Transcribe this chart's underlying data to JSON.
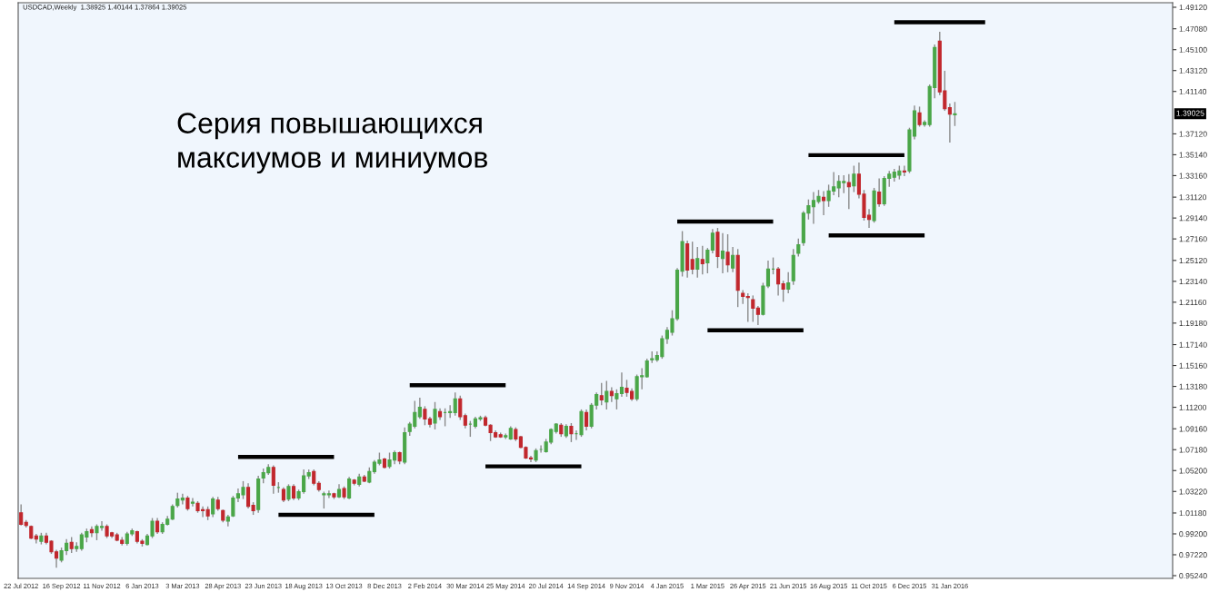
{
  "chart_data": {
    "type": "candlestick",
    "title": "USDCAD,Weekly  1.38925 1.40144 1.37864 1.39025",
    "annotations": [
      "Серия повышающихся\nмаксиумов и миниумов",
      "1.39025"
    ],
    "colors": [
      "#c1272d",
      "#c1272d",
      "#c1272d",
      "#c1272d",
      "#4aa648",
      "#c1272d",
      "#c1272d",
      "#c1272d",
      "#4aa648",
      "#4aa648",
      "#c1272d",
      "#4aa648",
      "#4aa648",
      "#4aa648",
      "#c1272d",
      "#4aa648",
      "#4aa648",
      "#c1272d",
      "#c1272d",
      "#c1272d",
      "#c1272d",
      "#4aa648",
      "#4aa648",
      "#c1272d",
      "#c1272d",
      "#4aa648",
      "#4aa648",
      "#c1272d",
      "#4aa648",
      "#4aa648",
      "#4aa648",
      "#4aa648",
      "#4aa648",
      "#c1272d",
      "#4aa648",
      "#c1272d",
      "#c1272d",
      "#c1272d",
      "#4aa648",
      "#c1272d",
      "#c1272d",
      "#4aa648",
      "#4aa648",
      "#4aa648",
      "#4aa648",
      "#c1272d",
      "#c1272d",
      "#4aa648",
      "#4aa648",
      "#4aa648",
      "#c1272d",
      "#4aa648",
      "#c1272d",
      "#4aa648",
      "#c1272d",
      "#4aa648",
      "#4aa648",
      "#4aa648",
      "#c1272d",
      "#c1272d",
      "#4aa648",
      "#4aa648",
      "#c1272d",
      "#4aa648",
      "#c1272d",
      "#4aa648",
      "#c1272d",
      "#4aa648",
      "#c1272d",
      "#4aa648",
      "#4aa648",
      "#4aa648",
      "#c1272d",
      "#4aa648",
      "#4aa648",
      "#c1272d",
      "#4aa648",
      "#4aa648",
      "#4aa648",
      "#4aa648",
      "#c1272d",
      "#c1272d",
      "#4aa648",
      "#c1272d",
      "#4aa648",
      "#4aa648",
      "#4aa648",
      "#c1272d",
      "#c1272d",
      "#4aa648",
      "#4aa648",
      "#4aa648",
      "#c1272d",
      "#c1272d",
      "#c1272d",
      "#c1272d",
      "#4aa648",
      "#4aa648",
      "#c1272d",
      "#c1272d",
      "#c1272d",
      "#c1272d",
      "#4aa648",
      "#4aa648",
      "#4aa648",
      "#4aa648",
      "#4aa648",
      "#c1272d",
      "#4aa648",
      "#c1272d",
      "#4aa648",
      "#4aa648",
      "#c1272d",
      "#4aa648",
      "#4aa648",
      "#c1272d",
      "#4aa648",
      "#c1272d",
      "#4aa648",
      "#4aa648",
      "#c1272d",
      "#c1272d",
      "#4aa648",
      "#4aa648",
      "#4aa648",
      "#4aa648",
      "#4aa648",
      "#4aa648",
      "#4aa648",
      "#4aa648",
      "#4aa648",
      "#4aa648",
      "#c1272d",
      "#c1272d",
      "#4aa648",
      "#c1272d",
      "#4aa648",
      "#4aa648",
      "#c1272d",
      "#4aa648",
      "#c1272d",
      "#4aa648",
      "#c1272d",
      "#c1272d",
      "#c1272d",
      "#c1272d",
      "#c1272d",
      "#4aa648",
      "#4aa648",
      "#4aa648",
      "#c1272d",
      "#c1272d",
      "#4aa648",
      "#4aa648",
      "#4aa648",
      "#4aa648",
      "#4aa648",
      "#4aa648",
      "#4aa648",
      "#c1272d",
      "#4aa648",
      "#4aa648",
      "#4aa648",
      "#4aa648",
      "#c1272d",
      "#4aa648",
      "#c1272d",
      "#c1272d",
      "#c1272d",
      "#4aa648",
      "#c1272d",
      "#4aa648",
      "#4aa648",
      "#4aa648",
      "#4aa648",
      "#c1272d",
      "#4aa648",
      "#4aa648",
      "#c1272d",
      "#4aa648",
      "#4aa648",
      "#4aa648",
      "#c1272d",
      "#c1272d",
      "#c1272d",
      "#4aa648"
    ],
    "x": [
      "2012-07-22",
      "2012-07-29",
      "2012-08-05",
      "2012-08-12",
      "2012-08-19",
      "2012-08-26",
      "2012-09-02",
      "2012-09-09",
      "2012-09-16",
      "2012-09-23",
      "2012-09-30",
      "2012-10-07",
      "2012-10-14",
      "2012-10-21",
      "2012-10-28",
      "2012-11-04",
      "2012-11-11",
      "2012-11-18",
      "2012-11-25",
      "2012-12-02",
      "2012-12-09",
      "2012-12-16",
      "2012-12-23",
      "2012-12-30",
      "2013-01-06",
      "2013-01-13",
      "2013-01-20",
      "2013-01-27",
      "2013-02-03",
      "2013-02-10",
      "2013-02-17",
      "2013-02-24",
      "2013-03-03",
      "2013-03-10",
      "2013-03-17",
      "2013-03-24",
      "2013-03-31",
      "2013-04-07",
      "2013-04-14",
      "2013-04-21",
      "2013-04-28",
      "2013-05-05",
      "2013-05-12",
      "2013-05-19",
      "2013-05-26",
      "2013-06-02",
      "2013-06-09",
      "2013-06-16",
      "2013-06-23",
      "2013-06-30",
      "2013-07-07",
      "2013-07-14",
      "2013-07-21",
      "2013-07-28",
      "2013-08-04",
      "2013-08-11",
      "2013-08-18",
      "2013-08-25",
      "2013-09-01",
      "2013-09-08",
      "2013-09-15",
      "2013-09-22",
      "2013-09-29",
      "2013-10-06",
      "2013-10-13",
      "2013-10-20",
      "2013-10-27",
      "2013-11-03",
      "2013-11-10",
      "2013-11-17",
      "2013-11-24",
      "2013-12-01",
      "2013-12-08",
      "2013-12-15",
      "2013-12-22",
      "2013-12-29",
      "2014-01-05",
      "2014-01-12",
      "2014-01-19",
      "2014-01-26",
      "2014-02-02",
      "2014-02-09",
      "2014-02-16",
      "2014-02-23",
      "2014-03-02",
      "2014-03-09",
      "2014-03-16",
      "2014-03-23",
      "2014-03-30",
      "2014-04-06",
      "2014-04-13",
      "2014-04-20",
      "2014-04-27",
      "2014-05-04",
      "2014-05-11",
      "2014-05-18",
      "2014-05-25",
      "2014-06-01",
      "2014-06-08",
      "2014-06-15",
      "2014-06-22",
      "2014-06-29",
      "2014-07-06",
      "2014-07-13",
      "2014-07-20",
      "2014-07-27",
      "2014-08-03",
      "2014-08-10",
      "2014-08-17",
      "2014-08-24",
      "2014-08-31",
      "2014-09-07",
      "2014-09-14",
      "2014-09-21",
      "2014-09-28",
      "2014-10-05",
      "2014-10-12",
      "2014-10-19",
      "2014-10-26",
      "2014-11-02",
      "2014-11-09",
      "2014-11-16",
      "2014-11-23",
      "2014-11-30",
      "2014-12-07",
      "2014-12-14",
      "2014-12-21",
      "2014-12-28",
      "2015-01-04",
      "2015-01-11",
      "2015-01-18",
      "2015-01-25",
      "2015-02-01",
      "2015-02-08",
      "2015-02-15",
      "2015-02-22",
      "2015-03-01",
      "2015-03-08",
      "2015-03-15",
      "2015-03-22",
      "2015-03-29",
      "2015-04-05",
      "2015-04-12",
      "2015-04-19",
      "2015-04-26",
      "2015-05-03",
      "2015-05-10",
      "2015-05-17",
      "2015-05-24",
      "2015-05-31",
      "2015-06-07",
      "2015-06-14",
      "2015-06-21",
      "2015-06-28",
      "2015-07-05",
      "2015-07-12",
      "2015-07-19",
      "2015-07-26",
      "2015-08-02",
      "2015-08-09",
      "2015-08-16",
      "2015-08-23",
      "2015-08-30",
      "2015-09-06",
      "2015-09-13",
      "2015-09-20",
      "2015-09-27",
      "2015-10-04",
      "2015-10-11",
      "2015-10-18",
      "2015-10-25",
      "2015-11-01",
      "2015-11-08",
      "2015-11-15",
      "2015-11-22",
      "2015-11-29",
      "2015-12-06",
      "2015-12-13",
      "2015-12-20",
      "2015-12-27",
      "2016-01-03",
      "2016-01-10",
      "2016-01-17",
      "2016-01-24",
      "2016-01-31",
      "2016-02-07"
    ],
    "ohlc": [
      [
        1.012,
        1.02,
        1.0,
        1.001
      ],
      [
        1.003,
        1.005,
        0.998,
        1.0
      ],
      [
        0.999,
        1.0,
        0.987,
        0.988
      ],
      [
        0.99,
        0.992,
        0.983,
        0.987
      ],
      [
        0.985,
        0.993,
        0.982,
        0.99
      ],
      [
        0.99,
        0.993,
        0.982,
        0.984
      ],
      [
        0.985,
        0.986,
        0.973,
        0.975
      ],
      [
        0.975,
        0.977,
        0.96,
        0.969
      ],
      [
        0.967,
        0.979,
        0.965,
        0.976
      ],
      [
        0.976,
        0.987,
        0.972,
        0.983
      ],
      [
        0.984,
        0.989,
        0.974,
        0.978
      ],
      [
        0.978,
        0.984,
        0.975,
        0.98
      ],
      [
        0.978,
        0.993,
        0.976,
        0.991
      ],
      [
        0.989,
        0.997,
        0.984,
        0.994
      ],
      [
        0.996,
        0.999,
        0.989,
        0.993
      ],
      [
        0.993,
        1.001,
        0.986,
        0.999
      ],
      [
        0.998,
        1.004,
        0.995,
        0.999
      ],
      [
        0.999,
        1.001,
        0.988,
        0.99
      ],
      [
        0.993,
        0.994,
        0.988,
        0.99
      ],
      [
        0.991,
        0.993,
        0.985,
        0.986
      ],
      [
        0.986,
        0.989,
        0.981,
        0.983
      ],
      [
        0.983,
        0.994,
        0.981,
        0.992
      ],
      [
        0.992,
        0.997,
        0.99,
        0.995
      ],
      [
        0.994,
        0.995,
        0.983,
        0.985
      ],
      [
        0.985,
        0.987,
        0.98,
        0.983
      ],
      [
        0.982,
        0.992,
        0.981,
        0.99
      ],
      [
        0.99,
        1.007,
        0.988,
        1.004
      ],
      [
        1.004,
        1.007,
        0.992,
        0.994
      ],
      [
        0.994,
        1.003,
        0.992,
        1.001
      ],
      [
        1.001,
        1.009,
        1.0,
        1.006
      ],
      [
        1.006,
        1.02,
        1.005,
        1.018
      ],
      [
        1.019,
        1.031,
        1.017,
        1.025
      ],
      [
        1.024,
        1.03,
        1.02,
        1.026
      ],
      [
        1.026,
        1.028,
        1.014,
        1.016
      ],
      [
        1.021,
        1.026,
        1.018,
        1.022
      ],
      [
        1.021,
        1.023,
        1.012,
        1.014
      ],
      [
        1.015,
        1.018,
        1.008,
        1.014
      ],
      [
        1.015,
        1.018,
        1.005,
        1.009
      ],
      [
        1.011,
        1.027,
        1.008,
        1.025
      ],
      [
        1.024,
        1.027,
        1.014,
        1.016
      ],
      [
        1.014,
        1.015,
        1.003,
        1.005
      ],
      [
        1.004,
        1.01,
        0.999,
        1.008
      ],
      [
        1.009,
        1.028,
        1.008,
        1.026
      ],
      [
        1.026,
        1.035,
        1.022,
        1.03
      ],
      [
        1.029,
        1.042,
        1.025,
        1.036
      ],
      [
        1.036,
        1.04,
        1.016,
        1.018
      ],
      [
        1.019,
        1.022,
        1.01,
        1.014
      ],
      [
        1.015,
        1.047,
        1.012,
        1.044
      ],
      [
        1.045,
        1.054,
        1.04,
        1.05
      ],
      [
        1.05,
        1.058,
        1.048,
        1.055
      ],
      [
        1.055,
        1.057,
        1.03,
        1.038
      ],
      [
        1.036,
        1.041,
        1.031,
        1.036
      ],
      [
        1.034,
        1.036,
        1.022,
        1.024
      ],
      [
        1.025,
        1.039,
        1.023,
        1.037
      ],
      [
        1.037,
        1.039,
        1.024,
        1.026
      ],
      [
        1.026,
        1.034,
        1.024,
        1.032
      ],
      [
        1.032,
        1.053,
        1.03,
        1.047
      ],
      [
        1.047,
        1.053,
        1.044,
        1.05
      ],
      [
        1.051,
        1.053,
        1.038,
        1.04
      ],
      [
        1.04,
        1.042,
        1.032,
        1.034
      ],
      [
        1.029,
        1.032,
        1.016,
        1.03
      ],
      [
        1.029,
        1.033,
        1.026,
        1.03
      ],
      [
        1.03,
        1.031,
        1.025,
        1.027
      ],
      [
        1.027,
        1.039,
        1.026,
        1.034
      ],
      [
        1.035,
        1.037,
        1.025,
        1.027
      ],
      [
        1.026,
        1.046,
        1.025,
        1.044
      ],
      [
        1.043,
        1.044,
        1.038,
        1.04
      ],
      [
        1.039,
        1.049,
        1.037,
        1.046
      ],
      [
        1.046,
        1.048,
        1.041,
        1.042
      ],
      [
        1.041,
        1.055,
        1.04,
        1.051
      ],
      [
        1.051,
        1.062,
        1.049,
        1.06
      ],
      [
        1.059,
        1.069,
        1.057,
        1.062
      ],
      [
        1.063,
        1.064,
        1.054,
        1.055
      ],
      [
        1.056,
        1.069,
        1.054,
        1.062
      ],
      [
        1.062,
        1.071,
        1.058,
        1.069
      ],
      [
        1.069,
        1.07,
        1.058,
        1.061
      ],
      [
        1.06,
        1.093,
        1.058,
        1.088
      ],
      [
        1.089,
        1.098,
        1.085,
        1.096
      ],
      [
        1.094,
        1.118,
        1.092,
        1.107
      ],
      [
        1.103,
        1.121,
        1.101,
        1.112
      ],
      [
        1.11,
        1.113,
        1.095,
        1.101
      ],
      [
        1.101,
        1.103,
        1.093,
        1.096
      ],
      [
        1.097,
        1.117,
        1.091,
        1.11
      ],
      [
        1.108,
        1.111,
        1.1,
        1.103
      ],
      [
        1.107,
        1.111,
        1.094,
        1.107
      ],
      [
        1.107,
        1.114,
        1.102,
        1.108
      ],
      [
        1.107,
        1.126,
        1.104,
        1.12
      ],
      [
        1.12,
        1.123,
        1.1,
        1.103
      ],
      [
        1.104,
        1.106,
        1.092,
        1.095
      ],
      [
        1.096,
        1.099,
        1.084,
        1.096
      ],
      [
        1.094,
        1.103,
        1.092,
        1.101
      ],
      [
        1.101,
        1.104,
        1.099,
        1.102
      ],
      [
        1.102,
        1.104,
        1.094,
        1.095
      ],
      [
        1.095,
        1.096,
        1.08,
        1.088
      ],
      [
        1.088,
        1.09,
        1.083,
        1.084
      ],
      [
        1.086,
        1.088,
        1.083,
        1.084
      ],
      [
        1.084,
        1.087,
        1.082,
        1.085
      ],
      [
        1.082,
        1.094,
        1.081,
        1.092
      ],
      [
        1.091,
        1.093,
        1.08,
        1.082
      ],
      [
        1.084,
        1.085,
        1.073,
        1.074
      ],
      [
        1.074,
        1.075,
        1.063,
        1.064
      ],
      [
        1.064,
        1.066,
        1.06,
        1.063
      ],
      [
        1.062,
        1.073,
        1.06,
        1.071
      ],
      [
        1.072,
        1.076,
        1.069,
        1.072
      ],
      [
        1.07,
        1.082,
        1.069,
        1.079
      ],
      [
        1.079,
        1.092,
        1.077,
        1.091
      ],
      [
        1.089,
        1.097,
        1.087,
        1.096
      ],
      [
        1.095,
        1.097,
        1.084,
        1.087
      ],
      [
        1.085,
        1.096,
        1.083,
        1.094
      ],
      [
        1.094,
        1.097,
        1.079,
        1.087
      ],
      [
        1.087,
        1.09,
        1.081,
        1.087
      ],
      [
        1.086,
        1.11,
        1.084,
        1.108
      ],
      [
        1.107,
        1.11,
        1.09,
        1.094
      ],
      [
        1.094,
        1.116,
        1.092,
        1.114
      ],
      [
        1.114,
        1.126,
        1.11,
        1.124
      ],
      [
        1.123,
        1.135,
        1.114,
        1.119
      ],
      [
        1.117,
        1.137,
        1.11,
        1.127
      ],
      [
        1.127,
        1.131,
        1.117,
        1.123
      ],
      [
        1.12,
        1.129,
        1.11,
        1.125
      ],
      [
        1.125,
        1.145,
        1.122,
        1.131
      ],
      [
        1.13,
        1.138,
        1.122,
        1.126
      ],
      [
        1.127,
        1.13,
        1.118,
        1.12
      ],
      [
        1.12,
        1.143,
        1.118,
        1.141
      ],
      [
        1.141,
        1.149,
        1.129,
        1.142
      ],
      [
        1.141,
        1.158,
        1.14,
        1.156
      ],
      [
        1.157,
        1.165,
        1.154,
        1.158
      ],
      [
        1.157,
        1.165,
        1.155,
        1.161
      ],
      [
        1.16,
        1.18,
        1.158,
        1.177
      ],
      [
        1.177,
        1.188,
        1.172,
        1.185
      ],
      [
        1.183,
        1.204,
        1.18,
        1.196
      ],
      [
        1.196,
        1.244,
        1.194,
        1.242
      ],
      [
        1.241,
        1.279,
        1.236,
        1.269
      ],
      [
        1.267,
        1.27,
        1.235,
        1.242
      ],
      [
        1.252,
        1.269,
        1.238,
        1.243
      ],
      [
        1.243,
        1.264,
        1.235,
        1.253
      ],
      [
        1.252,
        1.265,
        1.238,
        1.248
      ],
      [
        1.249,
        1.263,
        1.239,
        1.261
      ],
      [
        1.261,
        1.281,
        1.258,
        1.277
      ],
      [
        1.278,
        1.282,
        1.244,
        1.255
      ],
      [
        1.253,
        1.277,
        1.239,
        1.26
      ],
      [
        1.259,
        1.276,
        1.24,
        1.247
      ],
      [
        1.244,
        1.264,
        1.24,
        1.256
      ],
      [
        1.256,
        1.262,
        1.207,
        1.223
      ],
      [
        1.22,
        1.223,
        1.21,
        1.217
      ],
      [
        1.217,
        1.22,
        1.193,
        1.216
      ],
      [
        1.214,
        1.218,
        1.193,
        1.206
      ],
      [
        1.206,
        1.208,
        1.19,
        1.2
      ],
      [
        1.2,
        1.23,
        1.199,
        1.227
      ],
      [
        1.227,
        1.251,
        1.225,
        1.243
      ],
      [
        1.243,
        1.254,
        1.238,
        1.243
      ],
      [
        1.243,
        1.245,
        1.218,
        1.229
      ],
      [
        1.229,
        1.232,
        1.212,
        1.224
      ],
      [
        1.224,
        1.24,
        1.22,
        1.23
      ],
      [
        1.232,
        1.262,
        1.228,
        1.256
      ],
      [
        1.258,
        1.272,
        1.255,
        1.266
      ],
      [
        1.268,
        1.298,
        1.265,
        1.296
      ],
      [
        1.296,
        1.309,
        1.29,
        1.303
      ],
      [
        1.302,
        1.316,
        1.286,
        1.308
      ],
      [
        1.307,
        1.318,
        1.305,
        1.312
      ],
      [
        1.311,
        1.317,
        1.294,
        1.308
      ],
      [
        1.308,
        1.323,
        1.302,
        1.317
      ],
      [
        1.317,
        1.335,
        1.313,
        1.321
      ],
      [
        1.32,
        1.332,
        1.311,
        1.326
      ],
      [
        1.325,
        1.332,
        1.315,
        1.326
      ],
      [
        1.325,
        1.333,
        1.3,
        1.321
      ],
      [
        1.322,
        1.341,
        1.316,
        1.333
      ],
      [
        1.333,
        1.344,
        1.31,
        1.314
      ],
      [
        1.314,
        1.318,
        1.289,
        1.292
      ],
      [
        1.294,
        1.3,
        1.282,
        1.29
      ],
      [
        1.289,
        1.32,
        1.287,
        1.317
      ],
      [
        1.316,
        1.329,
        1.302,
        1.305
      ],
      [
        1.305,
        1.331,
        1.303,
        1.329
      ],
      [
        1.329,
        1.336,
        1.321,
        1.333
      ],
      [
        1.33,
        1.338,
        1.326,
        1.335
      ],
      [
        1.332,
        1.341,
        1.328,
        1.336
      ],
      [
        1.336,
        1.341,
        1.331,
        1.335
      ],
      [
        1.336,
        1.377,
        1.334,
        1.375
      ],
      [
        1.369,
        1.398,
        1.366,
        1.393
      ],
      [
        1.391,
        1.397,
        1.378,
        1.38
      ],
      [
        1.38,
        1.384,
        1.378,
        1.382
      ],
      [
        1.38,
        1.418,
        1.378,
        1.416
      ],
      [
        1.415,
        1.456,
        1.405,
        1.453
      ],
      [
        1.459,
        1.468,
        1.408,
        1.411
      ],
      [
        1.412,
        1.431,
        1.393,
        1.395
      ],
      [
        1.396,
        1.4,
        1.363,
        1.39
      ],
      [
        1.38925,
        1.40144,
        1.37864,
        1.39025
      ]
    ],
    "series": [
      {
        "type": "line",
        "color": "#000000",
        "x": [
          "2013-05-19",
          "2013-09-29"
        ],
        "values": [
          1.065,
          1.065
        ]
      },
      {
        "type": "line",
        "color": "#000000",
        "x": [
          "2013-07-14",
          "2013-11-24"
        ],
        "values": [
          1.01,
          1.01
        ]
      },
      {
        "type": "line",
        "color": "#000000",
        "x": [
          "2014-01-12",
          "2014-05-25"
        ],
        "values": [
          1.133,
          1.133
        ]
      },
      {
        "type": "line",
        "color": "#000000",
        "x": [
          "2014-04-27",
          "2014-09-07"
        ],
        "values": [
          1.056,
          1.056
        ]
      },
      {
        "type": "line",
        "color": "#000000",
        "x": [
          "2015-01-18",
          "2015-05-31"
        ],
        "values": [
          1.288,
          1.288
        ]
      },
      {
        "type": "line",
        "color": "#000000",
        "x": [
          "2015-03-01",
          "2015-07-12"
        ],
        "values": [
          1.185,
          1.185
        ]
      },
      {
        "type": "line",
        "color": "#000000",
        "x": [
          "2015-07-19",
          "2015-11-29"
        ],
        "values": [
          1.351,
          1.351
        ]
      },
      {
        "type": "line",
        "color": "#000000",
        "x": [
          "2015-08-16",
          "2015-12-27"
        ],
        "values": [
          1.275,
          1.275
        ]
      },
      {
        "type": "line",
        "color": "#000000",
        "x": [
          "2015-11-15",
          "2016-03-20"
        ],
        "values": [
          1.477,
          1.477
        ]
      }
    ],
    "xlim": [
      "2012-07-18",
      "2016-12-05"
    ],
    "xticks": [
      {
        "value": "2012-07-22",
        "label": "22 Jul 2012"
      },
      {
        "value": "2012-09-16",
        "label": "16 Sep 2012"
      },
      {
        "value": "2012-11-11",
        "label": "11 Nov 2012"
      },
      {
        "value": "2013-01-06",
        "label": "6 Jan 2013"
      },
      {
        "value": "2013-03-03",
        "label": "3 Mar 2013"
      },
      {
        "value": "2013-04-28",
        "label": "28 Apr 2013"
      },
      {
        "value": "2013-06-23",
        "label": "23 Jun 2013"
      },
      {
        "value": "2013-08-18",
        "label": "18 Aug 2013"
      },
      {
        "value": "2013-10-13",
        "label": "13 Oct 2013"
      },
      {
        "value": "2013-12-08",
        "label": "8 Dec 2013"
      },
      {
        "value": "2014-02-02",
        "label": "2 Feb 2014"
      },
      {
        "value": "2014-03-30",
        "label": "30 Mar 2014"
      },
      {
        "value": "2014-05-25",
        "label": "25 May 2014"
      },
      {
        "value": "2014-07-20",
        "label": "20 Jul 2014"
      },
      {
        "value": "2014-09-14",
        "label": "14 Sep 2014"
      },
      {
        "value": "2014-11-09",
        "label": "9 Nov 2014"
      },
      {
        "value": "2015-01-04",
        "label": "4 Jan 2015"
      },
      {
        "value": "2015-03-01",
        "label": "1 Mar 2015"
      },
      {
        "value": "2015-04-26",
        "label": "26 Apr 2015"
      },
      {
        "value": "2015-06-21",
        "label": "21 Jun 2015"
      },
      {
        "value": "2015-08-16",
        "label": "16 Aug 2015"
      },
      {
        "value": "2015-10-11",
        "label": "11 Oct 2015"
      },
      {
        "value": "2015-12-06",
        "label": "6 Dec 2015"
      },
      {
        "value": "2016-01-31",
        "label": "31 Jan 2016"
      }
    ],
    "ylim": [
      0.9498,
      1.4955
    ],
    "yticks": [
      {
        "value": 1.4912,
        "label": "1.49120"
      },
      {
        "value": 1.4708,
        "label": "1.47080"
      },
      {
        "value": 1.451,
        "label": "1.45100"
      },
      {
        "value": 1.4312,
        "label": "1.43120"
      },
      {
        "value": 1.4114,
        "label": "1.41140"
      },
      {
        "value": 1.3712,
        "label": "1.37120"
      },
      {
        "value": 1.3514,
        "label": "1.35140"
      },
      {
        "value": 1.3316,
        "label": "1.33160"
      },
      {
        "value": 1.3112,
        "label": "1.31120"
      },
      {
        "value": 1.2914,
        "label": "1.29140"
      },
      {
        "value": 1.2716,
        "label": "1.27160"
      },
      {
        "value": 1.2512,
        "label": "1.25120"
      },
      {
        "value": 1.2314,
        "label": "1.23140"
      },
      {
        "value": 1.2116,
        "label": "1.21160"
      },
      {
        "value": 1.1918,
        "label": "1.19180"
      },
      {
        "value": 1.1714,
        "label": "1.17140"
      },
      {
        "value": 1.1516,
        "label": "1.15160"
      },
      {
        "value": 1.1318,
        "label": "1.13180"
      },
      {
        "value": 1.112,
        "label": "1.11200"
      },
      {
        "value": 1.0916,
        "label": "1.09160"
      },
      {
        "value": 1.0718,
        "label": "1.07180"
      },
      {
        "value": 1.052,
        "label": "1.05200"
      },
      {
        "value": 1.0322,
        "label": "1.03220"
      },
      {
        "value": 1.0118,
        "label": "1.01180"
      },
      {
        "value": 0.992,
        "label": "0.99200"
      },
      {
        "value": 0.9722,
        "label": "0.97220"
      },
      {
        "value": 0.9524,
        "label": "0.95240"
      }
    ]
  }
}
